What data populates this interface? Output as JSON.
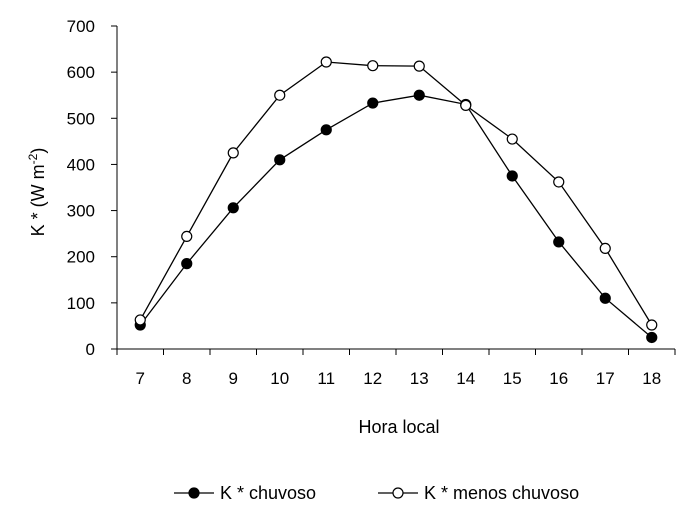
{
  "chart_data": {
    "type": "line",
    "title": "",
    "xlabel": "Hora local",
    "ylabel_main": "K * (W m",
    "ylabel_sup": "-2",
    "ylabel_close": ")",
    "x": [
      "7",
      "8",
      "9",
      "10",
      "11",
      "12",
      "13",
      "14",
      "15",
      "16",
      "17",
      "18"
    ],
    "ylim": [
      0,
      700
    ],
    "yticks": [
      "0",
      "100",
      "200",
      "300",
      "400",
      "500",
      "600",
      "700"
    ],
    "grid": false,
    "legend_position": "bottom",
    "series": [
      {
        "name": "K * chuvoso",
        "marker": "filled-circle",
        "color": "#000000",
        "values": [
          52,
          185,
          306,
          410,
          475,
          533,
          550,
          530,
          375,
          232,
          110,
          25
        ]
      },
      {
        "name": "K * menos chuvoso",
        "marker": "open-circle",
        "color": "#000000",
        "values": [
          63,
          244,
          425,
          550,
          622,
          614,
          613,
          528,
          455,
          362,
          218,
          52
        ]
      }
    ]
  }
}
